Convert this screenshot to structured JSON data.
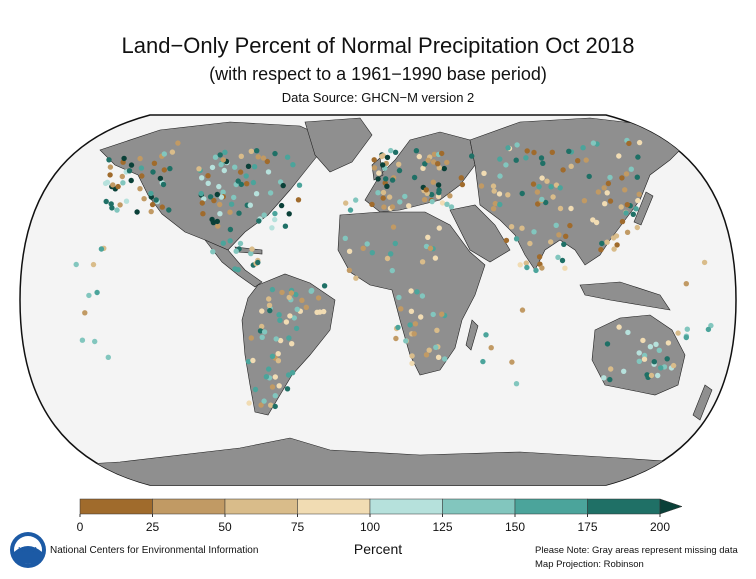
{
  "title": "Land−Only Percent of Normal Precipitation Oct 2018",
  "subtitle": "(with respect to a 1961−1990 base period)",
  "source": "Data Source: GHCN−M version 2",
  "colorbar": {
    "ticks": [
      "0",
      "25",
      "50",
      "75",
      "100",
      "125",
      "150",
      "175",
      "200"
    ],
    "colors": [
      "#a06b2c",
      "#c19a64",
      "#d9bc8a",
      "#f1dcb3",
      "#b6e1dc",
      "#82c6be",
      "#4ba49b",
      "#1f7066"
    ],
    "overflow_color": "#0a4038",
    "unit": "Percent"
  },
  "footer": {
    "org": "National Centers for Environmental Information",
    "note": "Please Note: Gray areas represent missing data",
    "projection": "Map Projection: Robinson",
    "logo_text": "NOAA"
  },
  "map": {
    "land_color": "#8f8f8f",
    "ocean_color": "#f4f4f4",
    "dot_colors": [
      "#a06b2c",
      "#c19a64",
      "#d9bc8a",
      "#f1dcb3",
      "#b6e1dc",
      "#82c6be",
      "#4ba49b",
      "#1f7066",
      "#0a4038"
    ],
    "dot_regions": [
      {
        "name": "north-america",
        "colors": [
          0,
          1,
          4,
          5,
          6,
          7,
          8
        ]
      },
      {
        "name": "central-america",
        "colors": [
          2,
          5,
          6,
          7
        ]
      },
      {
        "name": "south-america",
        "colors": [
          1,
          2,
          3,
          5,
          6,
          7
        ]
      },
      {
        "name": "europe",
        "colors": [
          0,
          1,
          2,
          3,
          5,
          7,
          8
        ]
      },
      {
        "name": "africa",
        "colors": [
          1,
          2,
          3,
          5,
          6
        ]
      },
      {
        "name": "asia",
        "colors": [
          0,
          1,
          2,
          3,
          5,
          6,
          7
        ]
      },
      {
        "name": "australia",
        "colors": [
          2,
          3,
          4,
          5,
          6,
          7
        ]
      },
      {
        "name": "islands",
        "colors": [
          1,
          2,
          5,
          6
        ]
      }
    ]
  }
}
